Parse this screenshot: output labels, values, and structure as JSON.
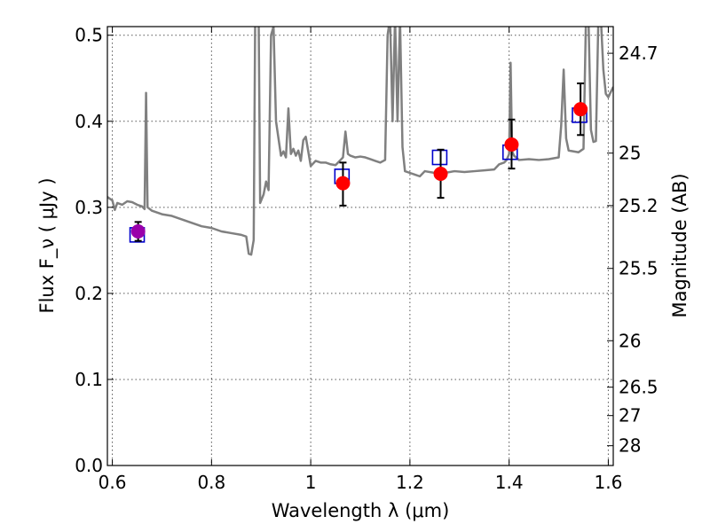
{
  "chart_data": {
    "type": "scatter",
    "title": "",
    "xlabel": "Wavelength  λ (μm)",
    "ylabel": "Flux  F_ν  ( μJy )",
    "ylabel_right": "Magnitude (AB)",
    "xlim": [
      0.59,
      1.61
    ],
    "ylim": [
      0.0,
      0.51
    ],
    "grid": true,
    "x_ticks": [
      0.6,
      0.8,
      1.0,
      1.2,
      1.4,
      1.6
    ],
    "x_tick_labels": [
      "0.6",
      "0.8",
      "1",
      "1.2",
      "1.4",
      "1.6"
    ],
    "y_ticks": [
      0.0,
      0.1,
      0.2,
      0.3,
      0.4,
      0.5
    ],
    "y_tick_labels": [
      "0.0",
      "0.1",
      "0.2",
      "0.3",
      "0.4",
      "0.5"
    ],
    "right_ticks": [
      {
        "label": "24.7",
        "flux": 0.479
      },
      {
        "label": "25",
        "flux": 0.363
      },
      {
        "label": "25.2",
        "flux": 0.302
      },
      {
        "label": "25.5",
        "flux": 0.229
      },
      {
        "label": "26",
        "flux": 0.145
      },
      {
        "label": "26.5",
        "flux": 0.091
      },
      {
        "label": "27",
        "flux": 0.058
      },
      {
        "label": "28",
        "flux": 0.023
      }
    ],
    "series": [
      {
        "type": "line",
        "color": "#808080",
        "points": [
          [
            0.59,
            0.312
          ],
          [
            0.6,
            0.308
          ],
          [
            0.605,
            0.297
          ],
          [
            0.61,
            0.305
          ],
          [
            0.62,
            0.303
          ],
          [
            0.63,
            0.307
          ],
          [
            0.64,
            0.306
          ],
          [
            0.65,
            0.303
          ],
          [
            0.66,
            0.301
          ],
          [
            0.665,
            0.298
          ],
          [
            0.668,
            0.433
          ],
          [
            0.671,
            0.3
          ],
          [
            0.68,
            0.296
          ],
          [
            0.7,
            0.292
          ],
          [
            0.72,
            0.29
          ],
          [
            0.74,
            0.286
          ],
          [
            0.76,
            0.282
          ],
          [
            0.78,
            0.278
          ],
          [
            0.8,
            0.276
          ],
          [
            0.82,
            0.272
          ],
          [
            0.84,
            0.27
          ],
          [
            0.86,
            0.268
          ],
          [
            0.87,
            0.266
          ],
          [
            0.875,
            0.246
          ],
          [
            0.88,
            0.245
          ],
          [
            0.885,
            0.262
          ],
          [
            0.888,
            0.52
          ],
          [
            0.895,
            0.52
          ],
          [
            0.898,
            0.305
          ],
          [
            0.905,
            0.315
          ],
          [
            0.91,
            0.33
          ],
          [
            0.915,
            0.32
          ],
          [
            0.92,
            0.5
          ],
          [
            0.925,
            0.51
          ],
          [
            0.93,
            0.4
          ],
          [
            0.94,
            0.36
          ],
          [
            0.945,
            0.365
          ],
          [
            0.95,
            0.358
          ],
          [
            0.955,
            0.415
          ],
          [
            0.96,
            0.362
          ],
          [
            0.965,
            0.368
          ],
          [
            0.97,
            0.36
          ],
          [
            0.975,
            0.366
          ],
          [
            0.98,
            0.354
          ],
          [
            0.985,
            0.378
          ],
          [
            0.99,
            0.382
          ],
          [
            1.0,
            0.348
          ],
          [
            1.01,
            0.354
          ],
          [
            1.02,
            0.352
          ],
          [
            1.03,
            0.352
          ],
          [
            1.04,
            0.35
          ],
          [
            1.05,
            0.349
          ],
          [
            1.06,
            0.355
          ],
          [
            1.065,
            0.358
          ],
          [
            1.07,
            0.388
          ],
          [
            1.075,
            0.362
          ],
          [
            1.08,
            0.36
          ],
          [
            1.09,
            0.358
          ],
          [
            1.1,
            0.359
          ],
          [
            1.11,
            0.358
          ],
          [
            1.12,
            0.356
          ],
          [
            1.13,
            0.354
          ],
          [
            1.14,
            0.352
          ],
          [
            1.15,
            0.355
          ],
          [
            1.155,
            0.5
          ],
          [
            1.16,
            0.52
          ],
          [
            1.165,
            0.4
          ],
          [
            1.17,
            0.52
          ],
          [
            1.175,
            0.4
          ],
          [
            1.18,
            0.52
          ],
          [
            1.185,
            0.37
          ],
          [
            1.19,
            0.342
          ],
          [
            1.2,
            0.34
          ],
          [
            1.21,
            0.338
          ],
          [
            1.22,
            0.336
          ],
          [
            1.23,
            0.342
          ],
          [
            1.25,
            0.34
          ],
          [
            1.27,
            0.34
          ],
          [
            1.29,
            0.342
          ],
          [
            1.31,
            0.341
          ],
          [
            1.33,
            0.342
          ],
          [
            1.35,
            0.343
          ],
          [
            1.37,
            0.344
          ],
          [
            1.38,
            0.35
          ],
          [
            1.39,
            0.352
          ],
          [
            1.395,
            0.355
          ],
          [
            1.4,
            0.362
          ],
          [
            1.403,
            0.468
          ],
          [
            1.406,
            0.365
          ],
          [
            1.41,
            0.36
          ],
          [
            1.42,
            0.355
          ],
          [
            1.44,
            0.356
          ],
          [
            1.46,
            0.355
          ],
          [
            1.48,
            0.356
          ],
          [
            1.5,
            0.358
          ],
          [
            1.505,
            0.395
          ],
          [
            1.51,
            0.46
          ],
          [
            1.515,
            0.38
          ],
          [
            1.52,
            0.366
          ],
          [
            1.53,
            0.365
          ],
          [
            1.54,
            0.364
          ],
          [
            1.55,
            0.368
          ],
          [
            1.555,
            0.52
          ],
          [
            1.56,
            0.52
          ],
          [
            1.565,
            0.39
          ],
          [
            1.57,
            0.376
          ],
          [
            1.575,
            0.377
          ],
          [
            1.58,
            0.52
          ],
          [
            1.585,
            0.52
          ],
          [
            1.59,
            0.46
          ],
          [
            1.595,
            0.432
          ],
          [
            1.6,
            0.428
          ],
          [
            1.61,
            0.44
          ]
        ]
      },
      {
        "type": "squares",
        "color": "#0000cc",
        "points": [
          [
            0.65,
            0.268
          ],
          [
            1.063,
            0.336
          ],
          [
            1.26,
            0.358
          ],
          [
            1.402,
            0.364
          ],
          [
            1.542,
            0.407
          ]
        ]
      },
      {
        "type": "points_with_errorbars",
        "color": "#ff0000",
        "points": [
          {
            "x": 0.652,
            "y": 0.272,
            "low": 0.261,
            "high": 0.283,
            "color": "#9900aa"
          },
          {
            "x": 1.065,
            "y": 0.328,
            "low": 0.302,
            "high": 0.352,
            "color": "#ff0000"
          },
          {
            "x": 1.262,
            "y": 0.339,
            "low": 0.311,
            "high": 0.367,
            "color": "#ff0000"
          },
          {
            "x": 1.405,
            "y": 0.373,
            "low": 0.345,
            "high": 0.402,
            "color": "#ff0000"
          },
          {
            "x": 1.544,
            "y": 0.414,
            "low": 0.384,
            "high": 0.444,
            "color": "#ff0000"
          }
        ]
      }
    ]
  }
}
